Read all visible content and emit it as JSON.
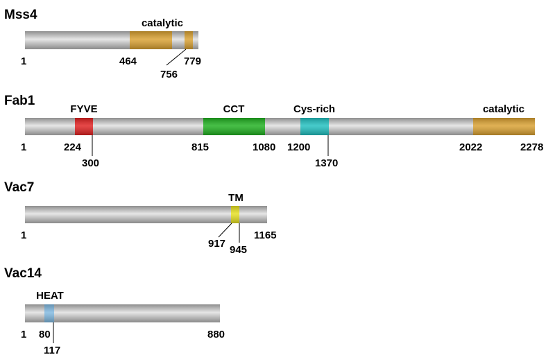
{
  "proteins": [
    {
      "name": "Mss4",
      "length_label": "779",
      "start_label": "1",
      "domains": [
        {
          "label": "catalytic",
          "color": "#D9A030",
          "pieces": [
            [
              464,
              756
            ],
            [
              756,
              779
            ]
          ]
        }
      ],
      "positions": [
        "464",
        "756",
        "779"
      ]
    },
    {
      "name": "Fab1",
      "length_label": "2278",
      "start_label": "1",
      "domains": [
        {
          "label": "FYVE",
          "color": "#E02020",
          "range": [
            224,
            300
          ]
        },
        {
          "label": "CCT",
          "color": "#1FB01F",
          "range": [
            815,
            1080
          ]
        },
        {
          "label": "Cys-rich",
          "color": "#1FBFBF",
          "range": [
            1200,
            1370
          ]
        },
        {
          "label": "catalytic",
          "color": "#D9A030",
          "range": [
            2022,
            2278
          ]
        }
      ],
      "positions": [
        "224",
        "300",
        "815",
        "1080",
        "1200",
        "1370",
        "2022",
        "2278"
      ]
    },
    {
      "name": "Vac7",
      "length_label": "1165",
      "start_label": "1",
      "domains": [
        {
          "label": "TM",
          "color": "#E6E020",
          "range": [
            917,
            945
          ]
        }
      ],
      "positions": [
        "917",
        "945",
        "1165"
      ]
    },
    {
      "name": "Vac14",
      "length_label": "880",
      "start_label": "1",
      "domains": [
        {
          "label": "HEAT",
          "color": "#7FB8E0",
          "range": [
            80,
            117
          ]
        }
      ],
      "positions": [
        "80",
        "117",
        "880"
      ]
    }
  ]
}
